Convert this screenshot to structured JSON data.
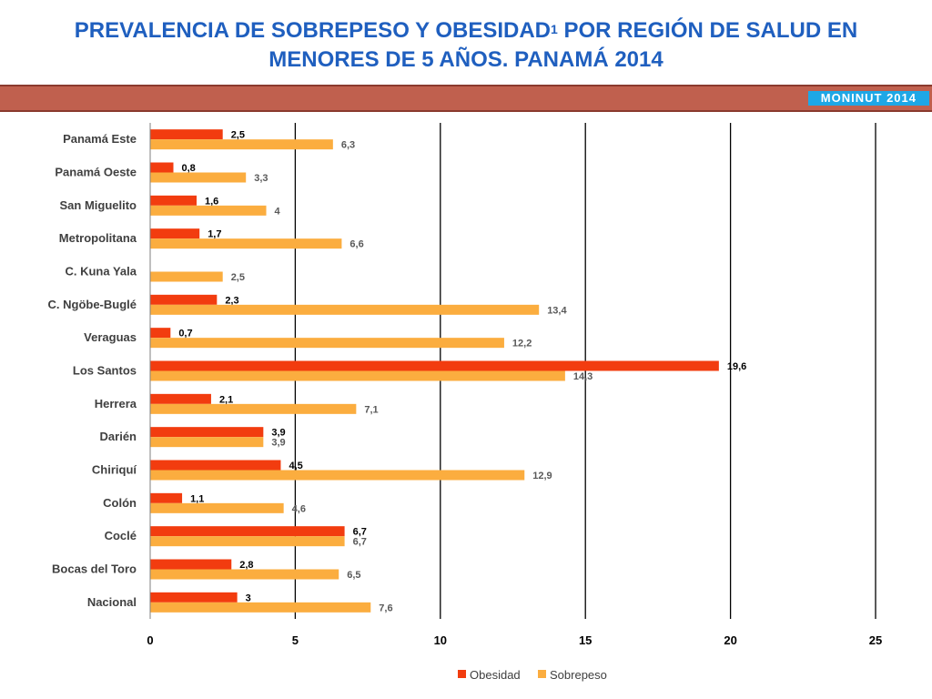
{
  "header": {
    "title_part1": "PREVALENCIA DE SOBREPESO Y OBESIDAD",
    "title_sup": "1",
    "title_part2": " POR REGIÓN DE SALUD EN MENORES DE 5 AÑOS. PANAMÁ 2014",
    "badge": "MONINUT 2014"
  },
  "colors": {
    "obesidad": "#f23c0f",
    "sobrepeso": "#fbad3f",
    "banner": "#c0604e",
    "badge": "#1ea7e6",
    "title": "#1f5fbf"
  },
  "chart_data": {
    "type": "bar",
    "orientation": "horizontal",
    "categories": [
      "Panamá Este",
      "Panamá Oeste",
      "San Miguelito",
      "Metropolitana",
      "C. Kuna Yala",
      "C. Ngöbe-Buglé",
      "Veraguas",
      "Los Santos",
      "Herrera",
      "Darién",
      "Chiriquí",
      "Colón",
      "Coclé",
      "Bocas del Toro",
      "Nacional"
    ],
    "series": [
      {
        "name": "Obesidad",
        "values": [
          2.5,
          0.8,
          1.6,
          1.7,
          null,
          2.3,
          0.7,
          19.6,
          2.1,
          3.9,
          4.5,
          1.1,
          6.7,
          2.8,
          3
        ],
        "labels": [
          "2,5",
          "0,8",
          "1,6",
          "1,7",
          "",
          "2,3",
          "0,7",
          "19,6",
          "2,1",
          "3,9",
          "4,5",
          "1,1",
          "6,7",
          "2,8",
          "3"
        ]
      },
      {
        "name": "Sobrepeso",
        "values": [
          6.3,
          3.3,
          4,
          6.6,
          2.5,
          13.4,
          12.2,
          14.3,
          7.1,
          3.9,
          12.9,
          4.6,
          6.7,
          6.5,
          7.6
        ],
        "labels": [
          "6,3",
          "3,3",
          "4",
          "6,6",
          "2,5",
          "13,4",
          "12,2",
          "14,3",
          "7,1",
          "3,9",
          "12,9",
          "4,6",
          "6,7",
          "6,5",
          "7,6"
        ]
      }
    ],
    "xlim": [
      0,
      25
    ],
    "xticks": [
      0,
      5,
      10,
      15,
      20,
      25
    ],
    "grid": "vertical",
    "legend_position": "bottom"
  }
}
